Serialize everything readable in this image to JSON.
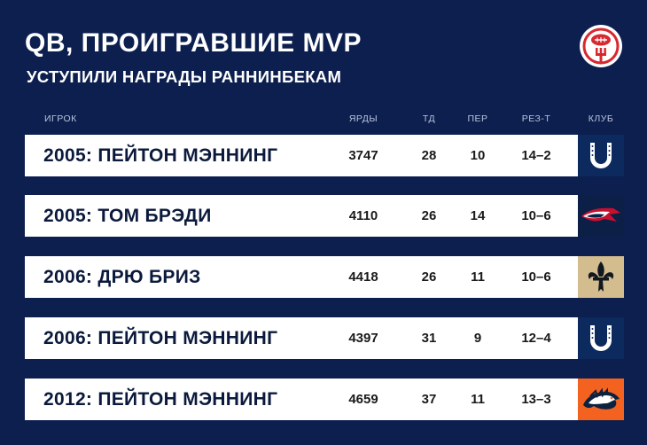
{
  "header": {
    "title": "QB, ПРОИГРАВШИЕ MVP",
    "subtitle": "УСТУПИЛИ НАГРАДЫ РАННИНБЕКАМ",
    "logo_icon": "football-fork-logo-icon"
  },
  "columns": {
    "player": "ИГРОК",
    "yards": "ЯРДЫ",
    "td": "ТД",
    "int": "ПЕР",
    "record": "РЕЗ-Т",
    "team": "КЛУБ"
  },
  "rows": [
    {
      "player": "2005: ПЕЙТОН МЭННИНГ",
      "yards": "3747",
      "td": "28",
      "int": "10",
      "record": "14–2",
      "team_icon": "colts-horseshoe-icon",
      "team_color": "#0d2a5e"
    },
    {
      "player": "2005: ТОМ БРЭДИ",
      "yards": "4110",
      "td": "26",
      "int": "14",
      "record": "10–6",
      "team_icon": "patriots-logo-icon",
      "team_color": "#0b1f47"
    },
    {
      "player": "2006: ДРЮ БРИЗ",
      "yards": "4418",
      "td": "26",
      "int": "11",
      "record": "10–6",
      "team_icon": "saints-fleur-de-lis-icon",
      "team_color": "#d3bc8d"
    },
    {
      "player": "2006: ПЕЙТОН МЭННИНГ",
      "yards": "4397",
      "td": "31",
      "int": "9",
      "record": "12–4",
      "team_icon": "colts-horseshoe-icon",
      "team_color": "#0d2a5e"
    },
    {
      "player": "2012: ПЕЙТОН МЭННИНГ",
      "yards": "4659",
      "td": "37",
      "int": "11",
      "record": "13–3",
      "team_icon": "broncos-horse-icon",
      "team_color": "#f4621f"
    }
  ],
  "colors": {
    "background": "#0c1f4f",
    "row_background": "#ffffff",
    "logo_red": "#d7282f"
  }
}
